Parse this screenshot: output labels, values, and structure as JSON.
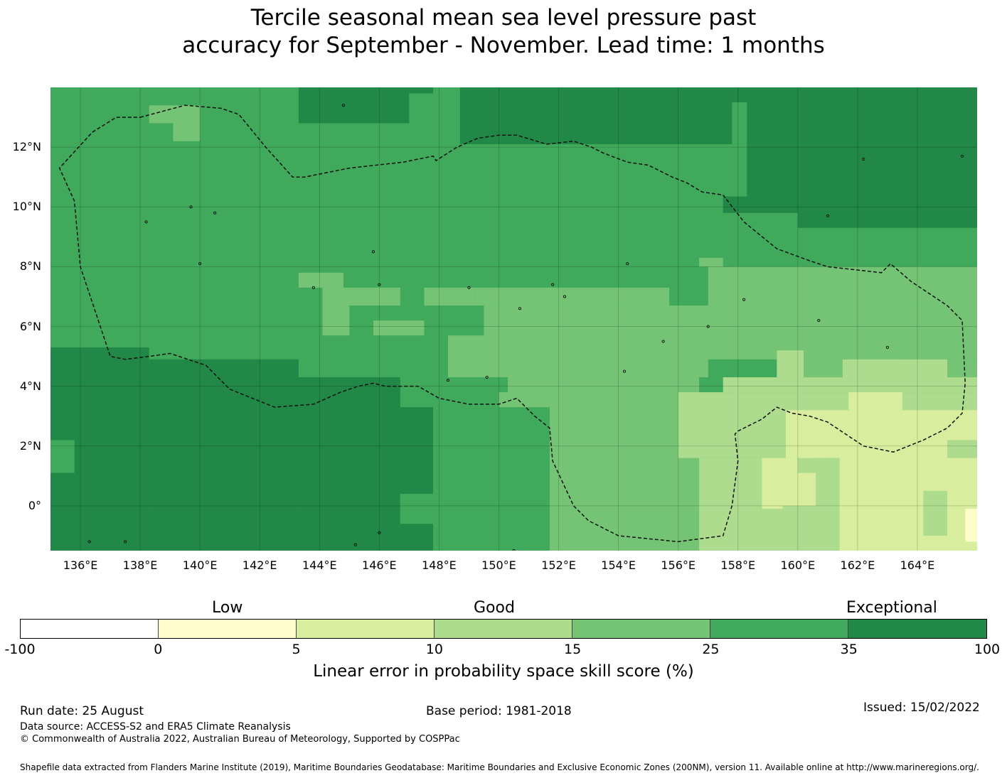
{
  "title": {
    "line1": "Tercile seasonal mean sea level pressure past",
    "line2": "accuracy for September - November. Lead time: 1 months"
  },
  "map": {
    "lon_range": [
      135,
      166
    ],
    "lat_range": [
      -1.5,
      14
    ],
    "lat_labels": [
      "12°N",
      "10°N",
      "8°N",
      "6°N",
      "4°N",
      "2°N",
      "0°"
    ],
    "lon_labels": [
      "136°E",
      "138°E",
      "140°E",
      "142°E",
      "144°E",
      "146°E",
      "148°E",
      "150°E",
      "152°E",
      "154°E",
      "156°E",
      "158°E",
      "160°E",
      "162°E",
      "164°E"
    ],
    "cell_size_deg": 0.83,
    "category_colors": {
      "c7": "#228847",
      "c6": "#40a95b",
      "c5": "#75c475",
      "c4": "#aedc8e",
      "c3": "#d8ee9e",
      "c2": "#fdfbc7"
    },
    "grid_rows": [
      "66666666666666666677777666666666666776666666666677777777777777777777777777777",
      "66666666666666666666666666666666666667666666666666666666666666666666666666666",
      "66666666666666666666666666666666666666666666666666666666666666666666666666666",
      "66666666666666666666666666666666666666666666666666666666666666666666666666666",
      "66666666666666666666666666666666666666666666666666666666666666666666666666666",
      "66666666666666666666666666666666666666666666666666666666666666666666666666666",
      "66666666666666666666666666666666666666666666666666666666666666666666666666666",
      "66666666666666666666666666666666666666666666666666666666666666666666666666666",
      "66666666666666666666666666666666666666666666666666666666666666666666666666666",
      "66666666666666666666666666666666666666666666666666666666666666666666666666666",
      "66666666666666666666666666666666666666666666666666666666666666666666666666666",
      "66666666666666666666666666666666666666666666666666666666666666666666666666666",
      "66666666666666666666666666666666666666666666666666666666666666666666666666666",
      "66666666666666666666666666666666666666666666666666666666666666666666666666666",
      "66666666666666666666666666666666666666666666666666666666666666666666666666666",
      "66666666666666666666666666666666666666666666666666666666666666666666666666666",
      "66666666666666666666666666666666666666666666666666666666666666666666666666666",
      "66666666666666666666666666666666666666666666666666666666666666666666666666666",
      "66666666666666666666666666666666666666666666666666666666666666666666666666666"
    ],
    "regions": [
      {
        "cat": "c7",
        "lon": [
          148.7,
          166
        ],
        "lat": [
          12.1,
          14
        ]
      },
      {
        "cat": "c7",
        "lon": [
          158.3,
          166
        ],
        "lat": [
          10.35,
          12.1
        ]
      },
      {
        "cat": "c7",
        "lon": [
          157.5,
          166
        ],
        "lat": [
          9.8,
          10.35
        ]
      },
      {
        "cat": "c7",
        "lon": [
          160.0,
          166
        ],
        "lat": [
          9.3,
          9.8
        ]
      },
      {
        "cat": "c7",
        "lon": [
          143.3,
          147.0
        ],
        "lat": [
          12.8,
          14
        ]
      },
      {
        "cat": "c7",
        "lon": [
          147.0,
          147.8
        ],
        "lat": [
          13.8,
          14
        ]
      },
      {
        "cat": "c7",
        "lon": [
          150.0,
          150.8
        ],
        "lat": [
          13.3,
          14
        ]
      },
      {
        "cat": "c6",
        "lon": [
          157.8,
          158.3
        ],
        "lat": [
          12.1,
          13.5
        ]
      },
      {
        "cat": "c5",
        "lon": [
          138.3,
          140.0
        ],
        "lat": [
          12.8,
          13.4
        ]
      },
      {
        "cat": "c5",
        "lon": [
          139.1,
          140.0
        ],
        "lat": [
          12.2,
          12.8
        ]
      },
      {
        "cat": "c7",
        "lon": [
          135,
          138.3
        ],
        "lat": [
          -1.5,
          5.3
        ]
      },
      {
        "cat": "c7",
        "lon": [
          138.3,
          143.3
        ],
        "lat": [
          -1.5,
          4.9
        ]
      },
      {
        "cat": "c7",
        "lon": [
          143.3,
          146.7
        ],
        "lat": [
          -1.5,
          4.3
        ]
      },
      {
        "cat": "c7",
        "lon": [
          146.7,
          147.8
        ],
        "lat": [
          0.4,
          3.3
        ]
      },
      {
        "cat": "c7",
        "lon": [
          146.7,
          148.5
        ],
        "lat": [
          -1.5,
          -0.6
        ]
      },
      {
        "cat": "c6",
        "lon": [
          135,
          135.8
        ],
        "lat": [
          1.1,
          2.2
        ]
      },
      {
        "cat": "c6",
        "lon": [
          146.7,
          148.5
        ],
        "lat": [
          -0.6,
          0.4
        ]
      },
      {
        "cat": "c6",
        "lon": [
          147.8,
          151.7
        ],
        "lat": [
          -1.5,
          3.3
        ]
      },
      {
        "cat": "c6",
        "lon": [
          151.7,
          152.5
        ],
        "lat": [
          2.7,
          3.3
        ]
      },
      {
        "cat": "c5",
        "lon": [
          143.3,
          144.8
        ],
        "lat": [
          7.3,
          7.8
        ]
      },
      {
        "cat": "c5",
        "lon": [
          144.1,
          146.7
        ],
        "lat": [
          6.7,
          7.3
        ]
      },
      {
        "cat": "c5",
        "lon": [
          144.1,
          145.0
        ],
        "lat": [
          5.7,
          6.7
        ]
      },
      {
        "cat": "c5",
        "lon": [
          145.8,
          147.5
        ],
        "lat": [
          5.7,
          6.2
        ]
      },
      {
        "cat": "c5",
        "lon": [
          147.5,
          149.2
        ],
        "lat": [
          6.7,
          7.3
        ]
      },
      {
        "cat": "c5",
        "lon": [
          149.2,
          155.7
        ],
        "lat": [
          6.7,
          7.3
        ]
      },
      {
        "cat": "c5",
        "lon": [
          148.3,
          157.0
        ],
        "lat": [
          4.3,
          6.7
        ]
      },
      {
        "cat": "c5",
        "lon": [
          157.0,
          166
        ],
        "lat": [
          6.7,
          8.0
        ]
      },
      {
        "cat": "c5",
        "lon": [
          156.7,
          157.5
        ],
        "lat": [
          8.0,
          8.3
        ]
      },
      {
        "cat": "c5",
        "lon": [
          156.7,
          166
        ],
        "lat": [
          4.9,
          6.7
        ]
      },
      {
        "cat": "c5",
        "lon": [
          150.0,
          151.7
        ],
        "lat": [
          3.3,
          4.3
        ]
      },
      {
        "cat": "c5",
        "lon": [
          151.7,
          156.7
        ],
        "lat": [
          -1.5,
          4.3
        ]
      },
      {
        "cat": "c5",
        "lon": [
          156.7,
          157.5
        ],
        "lat": [
          -1.5,
          0.0
        ]
      },
      {
        "cat": "c5",
        "lon": [
          160.0,
          163.3
        ],
        "lat": [
          4.3,
          4.9
        ]
      },
      {
        "cat": "c5",
        "lon": [
          165.0,
          166
        ],
        "lat": [
          4.3,
          4.9
        ]
      },
      {
        "cat": "c6",
        "lon": [
          148.3,
          149.5
        ],
        "lat": [
          5.7,
          6.7
        ]
      },
      {
        "cat": "c6",
        "lon": [
          149.5,
          150.3
        ],
        "lat": [
          3.8,
          4.3
        ]
      },
      {
        "cat": "c6",
        "lon": [
          157.5,
          158.3
        ],
        "lat": [
          -1.5,
          -1.0
        ]
      },
      {
        "cat": "c4",
        "lon": [
          159.3,
          160.2
        ],
        "lat": [
          4.3,
          5.2
        ]
      },
      {
        "cat": "c4",
        "lon": [
          156.0,
          166
        ],
        "lat": [
          1.6,
          3.8
        ]
      },
      {
        "cat": "c4",
        "lon": [
          157.5,
          166
        ],
        "lat": [
          3.8,
          4.3
        ]
      },
      {
        "cat": "c4",
        "lon": [
          161.5,
          165.0
        ],
        "lat": [
          4.3,
          4.9
        ]
      },
      {
        "cat": "c4",
        "lon": [
          156.7,
          166
        ],
        "lat": [
          -1.5,
          1.6
        ]
      },
      {
        "cat": "c3",
        "lon": [
          161.7,
          163.5
        ],
        "lat": [
          3.2,
          3.8
        ]
      },
      {
        "cat": "c3",
        "lon": [
          159.6,
          166
        ],
        "lat": [
          1.6,
          3.2
        ]
      },
      {
        "cat": "c3",
        "lon": [
          158.8,
          160.6
        ],
        "lat": [
          -0.1,
          1.6
        ]
      },
      {
        "cat": "c3",
        "lon": [
          161.4,
          166
        ],
        "lat": [
          -1.5,
          1.6
        ]
      },
      {
        "cat": "c4",
        "lon": [
          160.0,
          160.9
        ],
        "lat": [
          1.1,
          1.6
        ]
      },
      {
        "cat": "c4",
        "lon": [
          164.2,
          165.0
        ],
        "lat": [
          -1.0,
          0.5
        ]
      },
      {
        "cat": "c4",
        "lon": [
          165.0,
          166
        ],
        "lat": [
          1.6,
          2.2
        ]
      },
      {
        "cat": "c4",
        "lon": [
          159.5,
          161.3
        ],
        "lat": [
          -1.5,
          0.0
        ]
      },
      {
        "cat": "c2",
        "lon": [
          165.6,
          166
        ],
        "lat": [
          -1.2,
          -0.1
        ]
      }
    ],
    "boundary_path_deg": [
      [
        138.0,
        13.0
      ],
      [
        139.5,
        13.4
      ],
      [
        140.7,
        13.3
      ],
      [
        141.3,
        13.1
      ],
      [
        142.2,
        12.0
      ],
      [
        143.1,
        11.0
      ],
      [
        143.5,
        11.0
      ],
      [
        145.0,
        11.3
      ],
      [
        146.8,
        11.5
      ],
      [
        147.8,
        11.7
      ],
      [
        147.9,
        11.55
      ],
      [
        148.6,
        12.0
      ],
      [
        149.3,
        12.3
      ],
      [
        150.0,
        12.4
      ],
      [
        150.6,
        12.4
      ],
      [
        151.6,
        12.1
      ],
      [
        152.5,
        12.2
      ],
      [
        153.1,
        12.0
      ],
      [
        153.5,
        11.8
      ],
      [
        154.3,
        11.5
      ],
      [
        155.0,
        11.4
      ],
      [
        155.8,
        11.0
      ],
      [
        156.3,
        10.8
      ],
      [
        156.8,
        10.5
      ],
      [
        157.5,
        10.4
      ],
      [
        158.2,
        9.5
      ],
      [
        159.3,
        8.6
      ],
      [
        160.4,
        8.2
      ],
      [
        161.0,
        8.0
      ],
      [
        162.8,
        7.8
      ],
      [
        163.1,
        8.1
      ],
      [
        163.8,
        7.5
      ],
      [
        165.0,
        6.7
      ],
      [
        165.5,
        6.2
      ],
      [
        165.6,
        4.1
      ],
      [
        165.5,
        3.1
      ],
      [
        165.0,
        2.6
      ],
      [
        164.2,
        2.2
      ],
      [
        163.2,
        1.8
      ],
      [
        162.2,
        2.0
      ],
      [
        161.0,
        2.8
      ],
      [
        160.7,
        2.9
      ],
      [
        160.4,
        3.0
      ],
      [
        159.8,
        3.1
      ],
      [
        159.3,
        3.3
      ],
      [
        158.8,
        2.9
      ],
      [
        158.0,
        2.5
      ],
      [
        157.9,
        2.4
      ],
      [
        158.0,
        1.5
      ],
      [
        157.8,
        0.0
      ],
      [
        157.5,
        -1.0
      ],
      [
        156.0,
        -1.2
      ],
      [
        154.0,
        -1.0
      ],
      [
        153.0,
        -0.5
      ],
      [
        152.5,
        0.0
      ],
      [
        151.8,
        1.5
      ],
      [
        151.7,
        2.6
      ],
      [
        151.2,
        3.0
      ],
      [
        150.6,
        3.6
      ],
      [
        150.0,
        3.4
      ],
      [
        149.0,
        3.4
      ],
      [
        148.0,
        3.6
      ],
      [
        147.3,
        4.0
      ],
      [
        146.2,
        4.0
      ],
      [
        145.8,
        4.1
      ],
      [
        145.3,
        4.0
      ],
      [
        144.7,
        3.8
      ],
      [
        143.8,
        3.4
      ],
      [
        142.5,
        3.3
      ],
      [
        141.0,
        3.9
      ],
      [
        140.2,
        4.7
      ],
      [
        139.0,
        5.1
      ],
      [
        138.3,
        5.0
      ],
      [
        137.5,
        4.9
      ],
      [
        137.0,
        5.0
      ],
      [
        136.0,
        8.0
      ],
      [
        135.8,
        10.2
      ],
      [
        135.3,
        11.3
      ],
      [
        136.4,
        12.5
      ],
      [
        137.2,
        13.0
      ],
      [
        138.0,
        13.0
      ]
    ],
    "islands_deg": [
      [
        144.8,
        13.4
      ],
      [
        145.7,
        15.1
      ],
      [
        138.2,
        9.5
      ],
      [
        139.7,
        10.0
      ],
      [
        140.5,
        9.8
      ],
      [
        145.8,
        8.5
      ],
      [
        151.8,
        7.4
      ],
      [
        149.0,
        7.3
      ],
      [
        146.0,
        7.4
      ],
      [
        143.8,
        7.3
      ],
      [
        154.3,
        8.1
      ],
      [
        158.2,
        6.9
      ],
      [
        163.0,
        5.3
      ],
      [
        155.5,
        5.5
      ],
      [
        154.2,
        4.5
      ],
      [
        157.0,
        6.0
      ],
      [
        160.7,
        6.2
      ],
      [
        162.2,
        11.6
      ],
      [
        165.5,
        11.7
      ],
      [
        161.0,
        9.7
      ],
      [
        150.7,
        6.6
      ],
      [
        152.2,
        7.0
      ],
      [
        149.6,
        4.3
      ],
      [
        148.3,
        4.2
      ],
      [
        140.0,
        8.1
      ],
      [
        150.5,
        -1.5
      ],
      [
        145.2,
        -1.3
      ],
      [
        146.0,
        -0.9
      ],
      [
        137.5,
        -1.2
      ],
      [
        136.3,
        -1.2
      ]
    ]
  },
  "colorbar": {
    "categories": {
      "low": "Low",
      "good": "Good",
      "exceptional": "Exceptional"
    },
    "segments": [
      {
        "color": "#ffffff"
      },
      {
        "color": "#fefdcb"
      },
      {
        "color": "#d8ee9e"
      },
      {
        "color": "#aedc8e"
      },
      {
        "color": "#75c475"
      },
      {
        "color": "#40a95b"
      },
      {
        "color": "#228847"
      }
    ],
    "ticks": [
      "-100",
      "0",
      "5",
      "10",
      "15",
      "25",
      "35",
      "100"
    ],
    "label": "Linear error in probability space skill score (%)"
  },
  "footer": {
    "run_date": "Run date: 25 August",
    "base_period": "Base period: 1981-2018",
    "issued": "Issued: 15/02/2022",
    "data_source": "Data source: ACCESS-S2 and ERA5 Climate Reanalysis",
    "copyright": "© Commonwealth of Australia 2022, Australian Bureau of Meteorology, Supported by COSPPac",
    "shapefile": "Shapefile data extracted from Flanders Marine Institute (2019), Maritime Boundaries Geodatabase: Maritime Boundaries and Exclusive Economic Zones (200NM), version 11. Available online at http://www.marineregions.org/."
  }
}
